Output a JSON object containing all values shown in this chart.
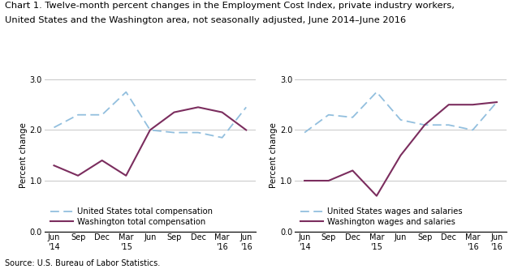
{
  "title_line1": "Chart 1. Twelve-month percent changes in the Employment Cost Index, private industry workers,",
  "title_line2": "United States and the Washington area, not seasonally adjusted, June 2014–June 2016",
  "ylabel": "Percent change",
  "source": "Source: U.S. Bureau of Labor Statistics.",
  "left_chart": {
    "us_total": [
      2.05,
      2.3,
      2.3,
      2.75,
      2.0,
      1.95,
      1.95,
      1.85,
      2.45
    ],
    "wa_total": [
      1.3,
      1.1,
      1.4,
      1.1,
      2.0,
      2.35,
      2.45,
      2.35,
      2.0
    ],
    "legend": [
      "United States total compensation",
      "Washington total compensation"
    ]
  },
  "right_chart": {
    "us_wages": [
      1.95,
      2.3,
      2.25,
      2.75,
      2.2,
      2.1,
      2.1,
      2.0,
      2.55
    ],
    "wa_wages": [
      1.0,
      1.0,
      1.2,
      0.7,
      1.5,
      2.1,
      2.5,
      2.5,
      2.55
    ],
    "legend": [
      "United States wages and salaries",
      "Washington wages and salaries"
    ]
  },
  "ylim": [
    0.0,
    3.0
  ],
  "yticks": [
    0.0,
    1.0,
    2.0,
    3.0
  ],
  "us_color": "#92BFDE",
  "wa_color": "#7B2D5E",
  "grid_color": "#BEBEBE",
  "title_fontsize": 8.2,
  "label_fontsize": 7.5,
  "tick_fontsize": 7.0,
  "legend_fontsize": 7.2
}
